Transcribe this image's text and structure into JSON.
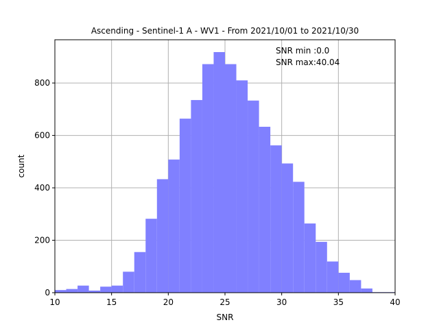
{
  "chart_data": {
    "type": "bar",
    "title": "Ascending - Sentinel-1 A - WV1 - From 2021/10/01 to 2021/10/30",
    "xlabel": "SNR",
    "ylabel": "count",
    "xlim": [
      10,
      40
    ],
    "ylim": [
      0,
      965
    ],
    "xticks": [
      "10",
      "15",
      "20",
      "25",
      "30",
      "35",
      "40"
    ],
    "yticks": [
      "0",
      "200",
      "400",
      "600",
      "800"
    ],
    "grid": true,
    "bar_color": "#8080ff",
    "bin_width": 1.0,
    "bins": [
      {
        "x0": 10,
        "x1": 11,
        "value": 10
      },
      {
        "x0": 11,
        "x1": 12,
        "value": 14
      },
      {
        "x0": 12,
        "x1": 13,
        "value": 27
      },
      {
        "x0": 13,
        "x1": 14,
        "value": 8
      },
      {
        "x0": 14,
        "x1": 15,
        "value": 23
      },
      {
        "x0": 15,
        "x1": 16,
        "value": 27
      },
      {
        "x0": 16,
        "x1": 17,
        "value": 80
      },
      {
        "x0": 17,
        "x1": 18,
        "value": 155
      },
      {
        "x0": 18,
        "x1": 19,
        "value": 282
      },
      {
        "x0": 19,
        "x1": 20,
        "value": 433
      },
      {
        "x0": 20,
        "x1": 21,
        "value": 508
      },
      {
        "x0": 21,
        "x1": 22,
        "value": 664
      },
      {
        "x0": 22,
        "x1": 23,
        "value": 735
      },
      {
        "x0": 23,
        "x1": 24,
        "value": 872
      },
      {
        "x0": 24,
        "x1": 25,
        "value": 918
      },
      {
        "x0": 25,
        "x1": 26,
        "value": 872
      },
      {
        "x0": 26,
        "x1": 27,
        "value": 810
      },
      {
        "x0": 27,
        "x1": 28,
        "value": 733
      },
      {
        "x0": 28,
        "x1": 29,
        "value": 633
      },
      {
        "x0": 29,
        "x1": 30,
        "value": 562
      },
      {
        "x0": 30,
        "x1": 31,
        "value": 493
      },
      {
        "x0": 31,
        "x1": 32,
        "value": 423
      },
      {
        "x0": 32,
        "x1": 33,
        "value": 264
      },
      {
        "x0": 33,
        "x1": 34,
        "value": 194
      },
      {
        "x0": 34,
        "x1": 35,
        "value": 119
      },
      {
        "x0": 35,
        "x1": 36,
        "value": 76
      },
      {
        "x0": 36,
        "x1": 37,
        "value": 48
      },
      {
        "x0": 37,
        "x1": 38,
        "value": 16
      },
      {
        "x0": 38,
        "x1": 39,
        "value": 2
      },
      {
        "x0": 39,
        "x1": 40,
        "value": 2
      }
    ],
    "annotations": [
      "SNR min :0.0",
      "SNR max:40.04"
    ]
  }
}
